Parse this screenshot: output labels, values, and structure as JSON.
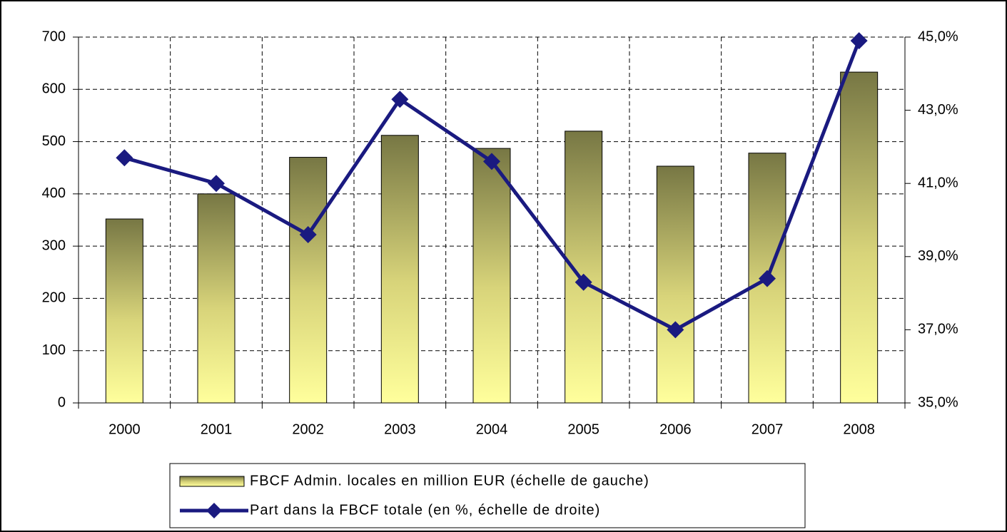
{
  "chart_data": {
    "type": "bar",
    "categories": [
      "2000",
      "2001",
      "2002",
      "2003",
      "2004",
      "2005",
      "2006",
      "2007",
      "2008"
    ],
    "series": [
      {
        "name": "FBCF Admin. locales en million EUR (échelle de gauche)",
        "type": "bar",
        "color": "#777744",
        "values": [
          352,
          400,
          470,
          512,
          487,
          520,
          453,
          478,
          633
        ]
      },
      {
        "name": "Part dans la FBCF totale (en %, échelle de droite)",
        "type": "line",
        "axis": "y2",
        "color": "#1a1a80",
        "values": [
          41.7,
          41.0,
          39.6,
          43.3,
          41.6,
          38.3,
          37.0,
          38.4,
          44.9
        ]
      }
    ],
    "ylim": [
      0,
      700
    ],
    "yticks": [
      0,
      100,
      200,
      300,
      400,
      500,
      600,
      700
    ],
    "y2lim": [
      35,
      45
    ],
    "y2ticks": [
      {
        "value": 35,
        "label": "35,0%"
      },
      {
        "value": 37,
        "label": "37,0%"
      },
      {
        "value": 39,
        "label": "39,0%"
      },
      {
        "value": 41,
        "label": "41,0%"
      },
      {
        "value": 43,
        "label": "43,0%"
      },
      {
        "value": 45,
        "label": "45,0%"
      }
    ],
    "grid": true
  }
}
